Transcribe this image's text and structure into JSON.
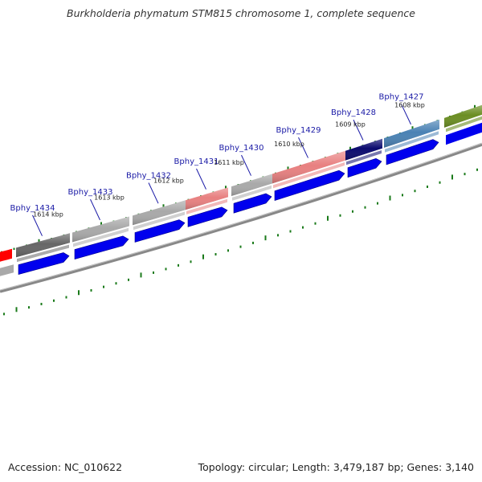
{
  "title": "Burkholderia phymatum STM815 chromosome 1, complete sequence",
  "footer": {
    "accession": "Accession: NC_010622",
    "summary": "Topology: circular; Length: 3,479,187 bp; Genes: 3,140"
  },
  "genes": [
    {
      "name": "Bphy_1434",
      "color": "#666666"
    },
    {
      "name": "Bphy_1433",
      "color": "#a9a9a9"
    },
    {
      "name": "Bphy_1432",
      "color": "#a9a9a9"
    },
    {
      "name": "Bphy_1431",
      "color": "#e88080"
    },
    {
      "name": "Bphy_1430",
      "color": "#a9a9a9"
    },
    {
      "name": "Bphy_1429",
      "color": "#e88080"
    },
    {
      "name": "Bphy_1428",
      "color": "#0a0a6e"
    },
    {
      "name": "Bphy_1427",
      "color": "#4a82b4"
    }
  ],
  "extra_features": [
    {
      "color": "#6b8e23"
    },
    {
      "color": "#6b8e23"
    },
    {
      "color": "#ff0000"
    },
    {
      "color": "#a9a9a9"
    }
  ],
  "positions": [
    "1614 kbp",
    "1613 kbp",
    "1612 kbp",
    "1611 kbp",
    "1610 kbp",
    "1609 kbp",
    "1608 kbp"
  ],
  "colors": {
    "cds": "#0000ee",
    "backbone": "#888888",
    "tick": "#1a7a1a"
  }
}
